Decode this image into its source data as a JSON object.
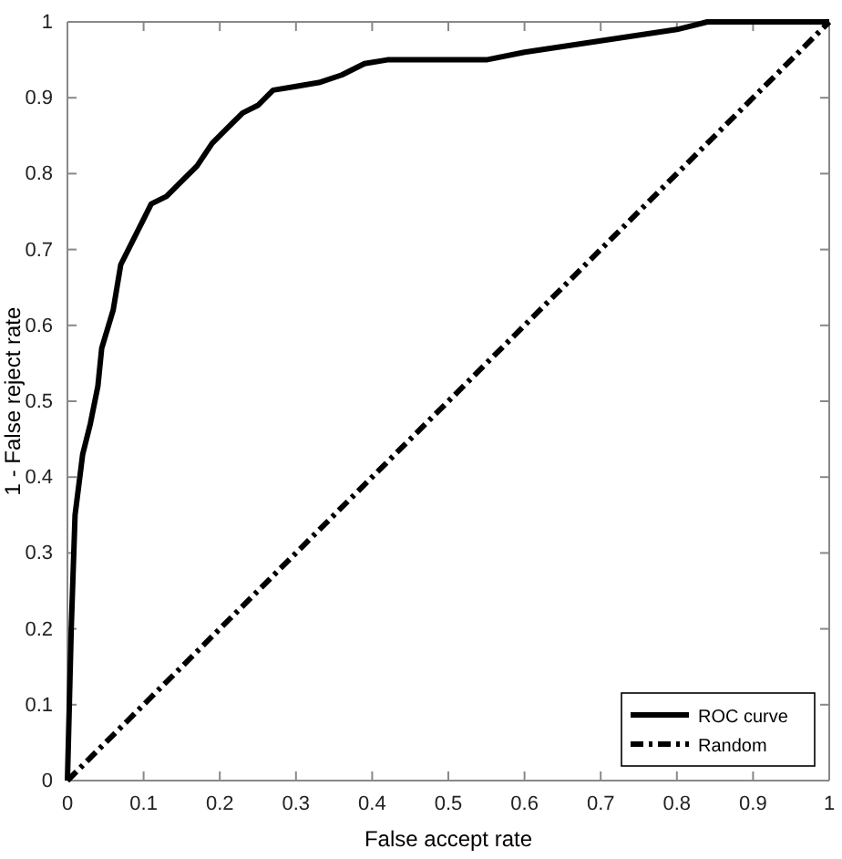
{
  "chart_data": {
    "type": "line",
    "xlabel": "False accept rate",
    "ylabel": "1 - False reject rate",
    "xlim": [
      0,
      1
    ],
    "ylim": [
      0,
      1
    ],
    "xticks": [
      0,
      0.1,
      0.2,
      0.3,
      0.4,
      0.5,
      0.6,
      0.7,
      0.8,
      0.9,
      1
    ],
    "yticks": [
      0,
      0.1,
      0.2,
      0.3,
      0.4,
      0.5,
      0.6,
      0.7,
      0.8,
      0.9,
      1
    ],
    "legend": "bottom right",
    "grid": false,
    "series": [
      {
        "name": "ROC curve",
        "color": "#000000",
        "line_style": "solid",
        "x": [
          0,
          0.005,
          0.01,
          0.02,
          0.03,
          0.04,
          0.045,
          0.06,
          0.07,
          0.08,
          0.1,
          0.11,
          0.13,
          0.15,
          0.17,
          0.19,
          0.21,
          0.23,
          0.25,
          0.27,
          0.3,
          0.33,
          0.36,
          0.39,
          0.42,
          0.55,
          0.6,
          0.7,
          0.8,
          0.84,
          1
        ],
        "values": [
          0,
          0.2,
          0.35,
          0.43,
          0.47,
          0.52,
          0.57,
          0.62,
          0.68,
          0.7,
          0.74,
          0.76,
          0.77,
          0.79,
          0.81,
          0.84,
          0.86,
          0.88,
          0.89,
          0.91,
          0.915,
          0.92,
          0.93,
          0.945,
          0.95,
          0.95,
          0.96,
          0.975,
          0.99,
          1,
          1
        ]
      },
      {
        "name": "Random",
        "color": "#000000",
        "line_style": "dashdot",
        "x": [
          0,
          1
        ],
        "values": [
          0,
          1
        ]
      }
    ]
  }
}
